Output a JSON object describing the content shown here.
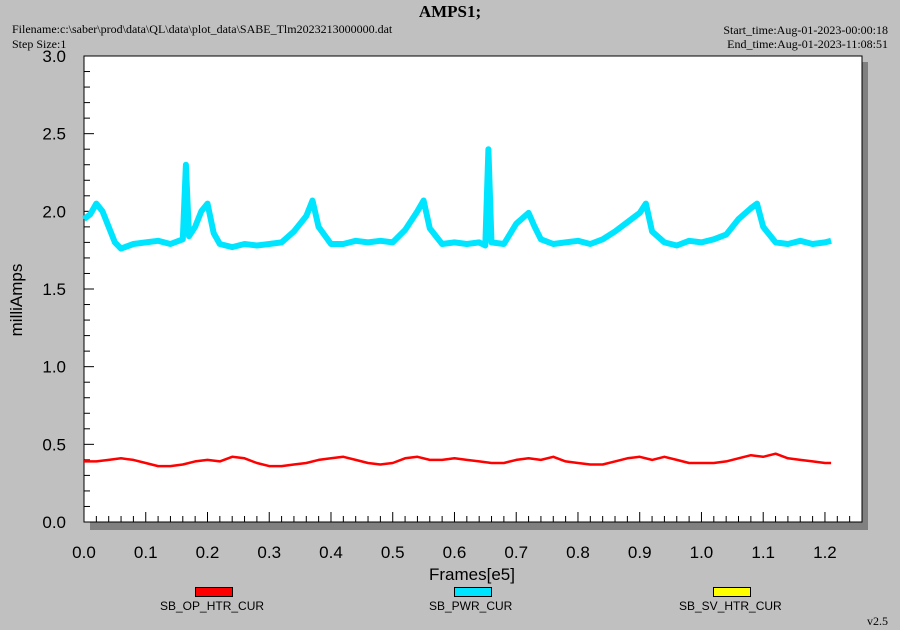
{
  "header": {
    "title": "AMPS1;",
    "filename": "Filename:c:\\saber\\prod\\data\\QL\\data\\plot_data\\SABE_Tlm2023213000000.dat",
    "step_size": "Step Size:1",
    "start_time": "Start_time:Aug-01-2023-00:00:18",
    "end_time": "End_time:Aug-01-2023-11:08:51",
    "version": "v2.5"
  },
  "chart_data": {
    "type": "line",
    "title": "AMPS1;",
    "xlabel": "Frames[e5]",
    "ylabel": "milliAmps",
    "xlim": [
      0.0,
      1.26
    ],
    "ylim": [
      0.0,
      3.0
    ],
    "x_ticks": [
      "0.0",
      "0.1",
      "0.2",
      "0.3",
      "0.4",
      "0.5",
      "0.6",
      "0.7",
      "0.8",
      "0.9",
      "1.0",
      "1.1",
      "1.2"
    ],
    "y_ticks": [
      "0.0",
      "0.5",
      "1.0",
      "1.5",
      "2.0",
      "2.5",
      "3.0"
    ],
    "grid": false,
    "legend_position": "bottom",
    "series": [
      {
        "name": "SB_OP_HTR_CUR",
        "color": "#ff0000",
        "x": [
          0.0,
          0.02,
          0.04,
          0.06,
          0.08,
          0.1,
          0.12,
          0.14,
          0.16,
          0.18,
          0.2,
          0.22,
          0.24,
          0.26,
          0.28,
          0.3,
          0.32,
          0.34,
          0.36,
          0.38,
          0.4,
          0.42,
          0.44,
          0.46,
          0.48,
          0.5,
          0.52,
          0.54,
          0.56,
          0.58,
          0.6,
          0.62,
          0.64,
          0.66,
          0.68,
          0.7,
          0.72,
          0.74,
          0.76,
          0.78,
          0.8,
          0.82,
          0.84,
          0.86,
          0.88,
          0.9,
          0.92,
          0.94,
          0.96,
          0.98,
          1.0,
          1.02,
          1.04,
          1.06,
          1.08,
          1.1,
          1.12,
          1.14,
          1.16,
          1.18,
          1.2,
          1.21
        ],
        "y": [
          0.39,
          0.39,
          0.4,
          0.41,
          0.4,
          0.38,
          0.36,
          0.36,
          0.37,
          0.39,
          0.4,
          0.39,
          0.42,
          0.41,
          0.38,
          0.36,
          0.36,
          0.37,
          0.38,
          0.4,
          0.41,
          0.42,
          0.4,
          0.38,
          0.37,
          0.38,
          0.41,
          0.42,
          0.4,
          0.4,
          0.41,
          0.4,
          0.39,
          0.38,
          0.38,
          0.4,
          0.41,
          0.4,
          0.42,
          0.39,
          0.38,
          0.37,
          0.37,
          0.39,
          0.41,
          0.42,
          0.4,
          0.42,
          0.4,
          0.38,
          0.38,
          0.38,
          0.39,
          0.41,
          0.43,
          0.42,
          0.44,
          0.41,
          0.4,
          0.39,
          0.38,
          0.38
        ]
      },
      {
        "name": "SB_PWR_CUR",
        "color": "#00e5ff",
        "x": [
          0.0,
          0.01,
          0.02,
          0.03,
          0.04,
          0.05,
          0.06,
          0.08,
          0.1,
          0.12,
          0.14,
          0.16,
          0.165,
          0.17,
          0.18,
          0.19,
          0.2,
          0.21,
          0.22,
          0.24,
          0.26,
          0.28,
          0.3,
          0.32,
          0.34,
          0.36,
          0.37,
          0.38,
          0.4,
          0.42,
          0.44,
          0.46,
          0.48,
          0.5,
          0.52,
          0.54,
          0.55,
          0.56,
          0.58,
          0.6,
          0.62,
          0.64,
          0.65,
          0.655,
          0.66,
          0.68,
          0.7,
          0.72,
          0.73,
          0.74,
          0.76,
          0.78,
          0.8,
          0.82,
          0.84,
          0.86,
          0.88,
          0.9,
          0.91,
          0.92,
          0.94,
          0.96,
          0.98,
          1.0,
          1.02,
          1.04,
          1.06,
          1.08,
          1.09,
          1.1,
          1.12,
          1.14,
          1.16,
          1.18,
          1.2,
          1.21
        ],
        "y": [
          1.95,
          1.98,
          2.05,
          2.0,
          1.9,
          1.8,
          1.76,
          1.79,
          1.8,
          1.81,
          1.79,
          1.82,
          2.3,
          1.84,
          1.9,
          2.0,
          2.05,
          1.86,
          1.79,
          1.77,
          1.79,
          1.78,
          1.79,
          1.8,
          1.87,
          1.97,
          2.07,
          1.9,
          1.79,
          1.79,
          1.81,
          1.8,
          1.81,
          1.8,
          1.88,
          2.0,
          2.07,
          1.89,
          1.79,
          1.8,
          1.79,
          1.8,
          1.78,
          2.4,
          1.8,
          1.79,
          1.92,
          1.99,
          1.9,
          1.82,
          1.79,
          1.8,
          1.81,
          1.79,
          1.82,
          1.87,
          1.93,
          1.99,
          2.05,
          1.87,
          1.8,
          1.78,
          1.81,
          1.8,
          1.82,
          1.85,
          1.95,
          2.02,
          2.05,
          1.9,
          1.8,
          1.79,
          1.81,
          1.79,
          1.8,
          1.81
        ]
      },
      {
        "name": "SB_SV_HTR_CUR",
        "color": "#ffff00",
        "x": [],
        "y": []
      }
    ]
  }
}
